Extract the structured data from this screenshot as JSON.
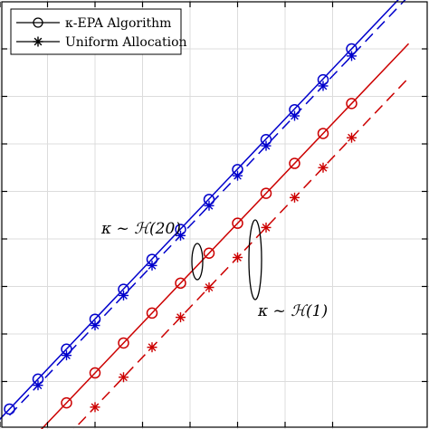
{
  "chart_data": {
    "type": "line",
    "title": "",
    "xlabel": "",
    "ylabel": "",
    "xlim": [
      0,
      9
    ],
    "ylim": [
      0,
      9
    ],
    "grid": true,
    "legend_placement": "top-left",
    "x_ticks": [
      1,
      2,
      3,
      4,
      5,
      6,
      7,
      8
    ],
    "y_ticks": [
      1,
      2,
      3,
      4,
      5,
      6,
      7,
      8
    ],
    "legend": [
      {
        "label": "κ-EPA Algorithm",
        "line": "solid",
        "marker": "circle",
        "color": "#000000"
      },
      {
        "label": "Uniform Allocation",
        "line": "solid",
        "marker": "asterisk",
        "color": "#000000"
      }
    ],
    "series": [
      {
        "group": "κ ~ H(20)",
        "method": "κ-EPA Algorithm",
        "color": "#0000cc",
        "line": "solid",
        "marker": "circle",
        "x": [
          1.2,
          1.8,
          2.4,
          3.0,
          3.6,
          4.2,
          4.8,
          5.4,
          6.0,
          6.6,
          7.2,
          7.8,
          8.4
        ],
        "y": [
          0.42,
          1.05,
          1.68,
          2.31,
          2.94,
          3.57,
          4.2,
          4.83,
          5.46,
          6.09,
          6.72,
          7.35,
          8.0
        ]
      },
      {
        "group": "κ ~ H(20)",
        "method": "Uniform Allocation",
        "color": "#0000cc",
        "line": "dashed",
        "marker": "asterisk",
        "x": [
          1.8,
          2.4,
          3.0,
          3.6,
          4.2,
          4.8,
          5.4,
          6.0,
          6.6,
          7.2,
          7.8,
          8.4
        ],
        "y": [
          0.92,
          1.55,
          2.18,
          2.81,
          3.44,
          4.07,
          4.7,
          5.33,
          5.96,
          6.59,
          7.22,
          7.85
        ]
      },
      {
        "group": "κ ~ H(1)",
        "method": "κ-EPA Algorithm",
        "color": "#cc0000",
        "line": "solid",
        "marker": "circle",
        "x": [
          2.4,
          3.0,
          3.6,
          4.2,
          4.8,
          5.4,
          6.0,
          6.6,
          7.2,
          7.8,
          8.4
        ],
        "y": [
          0.55,
          1.18,
          1.81,
          2.44,
          3.07,
          3.7,
          4.33,
          4.96,
          5.59,
          6.22,
          6.85
        ]
      },
      {
        "group": "κ ~ H(1)",
        "method": "Uniform Allocation",
        "color": "#cc0000",
        "line": "dashed",
        "marker": "asterisk",
        "x": [
          3.0,
          3.6,
          4.2,
          4.8,
          5.4,
          6.0,
          6.6,
          7.2,
          7.8,
          8.4
        ],
        "y": [
          0.46,
          1.09,
          1.72,
          2.35,
          2.98,
          3.61,
          4.24,
          4.87,
          5.5,
          6.13
        ]
      }
    ],
    "annotations": [
      {
        "text": "κ ~ ℋ(20)",
        "target_group": "κ ~ H(20)",
        "x": 4.0,
        "y": 3.4
      },
      {
        "text": "κ ~ ℋ(1)",
        "target_group": "κ ~ H(1)",
        "x": 5.3,
        "y": 3.0
      }
    ]
  }
}
